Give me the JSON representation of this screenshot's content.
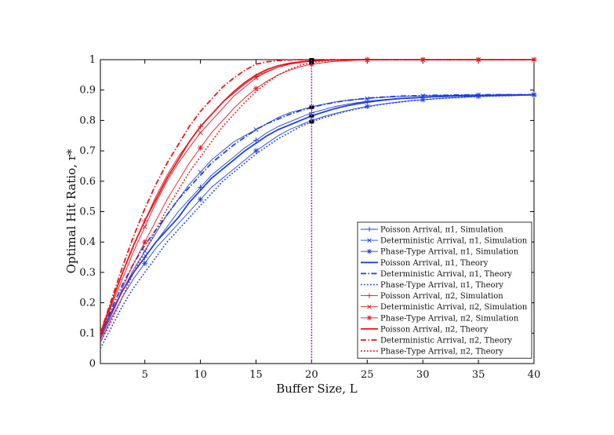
{
  "chart_data": {
    "type": "line",
    "xlabel": "Buffer Size, L",
    "ylabel": "Optimal Hit Ratio, r*",
    "xlim": [
      1,
      40
    ],
    "ylim": [
      0,
      1
    ],
    "xticks": [
      5,
      10,
      15,
      20,
      25,
      30,
      35,
      40
    ],
    "yticks": [
      0,
      0.1,
      0.2,
      0.3,
      0.4,
      0.5,
      0.6,
      0.7,
      0.8,
      0.9,
      1
    ],
    "ytick_labels": [
      "0",
      "0.1",
      "0.2",
      "0.3",
      "0.4",
      "0.5",
      "0.6",
      "0.7",
      "0.8",
      "0.9",
      "1"
    ],
    "grid": false,
    "legend_position": "bottom-right",
    "vline_x": 20,
    "colors": {
      "pi1": "#1f3fe0",
      "pi2": "#e8141c",
      "vline": "#9b1fd6"
    },
    "series": [
      {
        "name": "Poisson Arrival, π1, Simulation",
        "group": "pi1",
        "style": "sim",
        "marker": "plus",
        "x": [
          1,
          2,
          3,
          4,
          5,
          6,
          7,
          8,
          9,
          10,
          11,
          12,
          13,
          14,
          15,
          16,
          17,
          18,
          19,
          20,
          21,
          22,
          23,
          24,
          25,
          26,
          27,
          28,
          29,
          30,
          31,
          32,
          33,
          34,
          35,
          36,
          37,
          38,
          39,
          40
        ],
        "y": [
          0.09,
          0.17,
          0.24,
          0.3,
          0.35,
          0.4,
          0.45,
          0.5,
          0.54,
          0.58,
          0.62,
          0.65,
          0.68,
          0.71,
          0.735,
          0.76,
          0.78,
          0.795,
          0.81,
          0.825,
          0.835,
          0.845,
          0.852,
          0.858,
          0.863,
          0.867,
          0.87,
          0.873,
          0.875,
          0.877,
          0.878,
          0.879,
          0.88,
          0.881,
          0.882,
          0.882,
          0.883,
          0.883,
          0.884,
          0.884
        ]
      },
      {
        "name": "Deterministic Arrival, π1, Simulation",
        "group": "pi1",
        "style": "sim",
        "marker": "cross",
        "x": [
          1,
          2,
          3,
          4,
          5,
          6,
          7,
          8,
          9,
          10,
          11,
          12,
          13,
          14,
          15,
          16,
          17,
          18,
          19,
          20,
          21,
          22,
          23,
          24,
          25,
          26,
          27,
          28,
          29,
          30,
          31,
          32,
          33,
          34,
          35,
          36,
          37,
          38,
          39,
          40
        ],
        "y": [
          0.08,
          0.16,
          0.24,
          0.31,
          0.37,
          0.43,
          0.49,
          0.54,
          0.59,
          0.63,
          0.67,
          0.7,
          0.73,
          0.75,
          0.77,
          0.79,
          0.81,
          0.825,
          0.835,
          0.845,
          0.853,
          0.86,
          0.865,
          0.869,
          0.872,
          0.875,
          0.877,
          0.879,
          0.88,
          0.881,
          0.882,
          0.883,
          0.883,
          0.884,
          0.884,
          0.884,
          0.885,
          0.885,
          0.885,
          0.885
        ]
      },
      {
        "name": "Phase-Type Arrival, π1, Simulation",
        "group": "pi1",
        "style": "sim",
        "marker": "star",
        "x": [
          1,
          2,
          3,
          4,
          5,
          6,
          7,
          8,
          9,
          10,
          11,
          12,
          13,
          14,
          15,
          16,
          17,
          18,
          19,
          20,
          21,
          22,
          23,
          24,
          25,
          26,
          27,
          28,
          29,
          30,
          31,
          32,
          33,
          34,
          35,
          36,
          37,
          38,
          39,
          40
        ],
        "y": [
          0.07,
          0.15,
          0.22,
          0.28,
          0.33,
          0.38,
          0.42,
          0.46,
          0.5,
          0.54,
          0.58,
          0.61,
          0.64,
          0.67,
          0.7,
          0.725,
          0.75,
          0.77,
          0.785,
          0.8,
          0.812,
          0.822,
          0.831,
          0.839,
          0.846,
          0.852,
          0.857,
          0.861,
          0.865,
          0.868,
          0.871,
          0.873,
          0.875,
          0.877,
          0.879,
          0.88,
          0.881,
          0.882,
          0.883,
          0.884
        ]
      },
      {
        "name": "Poisson Arrival, π1, Theory",
        "group": "pi1",
        "style": "solid",
        "x": [
          1,
          2,
          3,
          4,
          5,
          6,
          7,
          8,
          9,
          10,
          11,
          12,
          13,
          14,
          15,
          16,
          17,
          18,
          19,
          20,
          21,
          22,
          23,
          24,
          25,
          26,
          27,
          28,
          29,
          30,
          31,
          32,
          33,
          34,
          35,
          36,
          37,
          38,
          39,
          40
        ],
        "y": [
          0.09,
          0.17,
          0.24,
          0.3,
          0.35,
          0.4,
          0.44,
          0.48,
          0.53,
          0.57,
          0.61,
          0.64,
          0.67,
          0.7,
          0.725,
          0.75,
          0.77,
          0.785,
          0.8,
          0.815,
          0.827,
          0.838,
          0.847,
          0.854,
          0.86,
          0.865,
          0.869,
          0.872,
          0.874,
          0.876,
          0.878,
          0.879,
          0.88,
          0.881,
          0.882,
          0.882,
          0.883,
          0.883,
          0.884,
          0.884
        ]
      },
      {
        "name": "Deterministic Arrival, π1, Theory",
        "group": "pi1",
        "style": "dashdot",
        "x": [
          1,
          2,
          3,
          4,
          5,
          6,
          7,
          8,
          9,
          10,
          11,
          12,
          13,
          14,
          15,
          16,
          17,
          18,
          19,
          20,
          21,
          22,
          23,
          24,
          25,
          26,
          27,
          28,
          29,
          30,
          31,
          32,
          33,
          34,
          35,
          36,
          37,
          38,
          39,
          40
        ],
        "y": [
          0.09,
          0.18,
          0.26,
          0.33,
          0.39,
          0.44,
          0.49,
          0.54,
          0.58,
          0.62,
          0.66,
          0.69,
          0.72,
          0.745,
          0.77,
          0.79,
          0.805,
          0.82,
          0.832,
          0.843,
          0.852,
          0.859,
          0.865,
          0.869,
          0.873,
          0.876,
          0.878,
          0.88,
          0.881,
          0.882,
          0.883,
          0.883,
          0.884,
          0.884,
          0.884,
          0.885,
          0.885,
          0.885,
          0.885,
          0.885
        ]
      },
      {
        "name": "Phase-Type Arrival, π1, Theory",
        "group": "pi1",
        "style": "dotted",
        "x": [
          1,
          2,
          3,
          4,
          5,
          6,
          7,
          8,
          9,
          10,
          11,
          12,
          13,
          14,
          15,
          16,
          17,
          18,
          19,
          20,
          21,
          22,
          23,
          24,
          25,
          26,
          27,
          28,
          29,
          30,
          31,
          32,
          33,
          34,
          35,
          36,
          37,
          38,
          39,
          40
        ],
        "y": [
          0.05,
          0.12,
          0.19,
          0.25,
          0.3,
          0.35,
          0.4,
          0.44,
          0.48,
          0.52,
          0.56,
          0.6,
          0.63,
          0.66,
          0.69,
          0.715,
          0.74,
          0.76,
          0.78,
          0.795,
          0.808,
          0.819,
          0.829,
          0.838,
          0.845,
          0.851,
          0.856,
          0.861,
          0.865,
          0.868,
          0.871,
          0.873,
          0.875,
          0.877,
          0.879,
          0.88,
          0.881,
          0.882,
          0.883,
          0.884
        ]
      },
      {
        "name": "Poisson Arrival, π2, Simulation",
        "group": "pi2",
        "style": "sim",
        "marker": "plus",
        "x": [
          1,
          2,
          3,
          4,
          5,
          6,
          7,
          8,
          9,
          10,
          11,
          12,
          13,
          14,
          15,
          16,
          17,
          18,
          19,
          20,
          21,
          22,
          23,
          24,
          25,
          26,
          27,
          28,
          29,
          30,
          31,
          32,
          33,
          34,
          35,
          36,
          37,
          38,
          39,
          40
        ],
        "y": [
          0.1,
          0.2,
          0.3,
          0.39,
          0.47,
          0.55,
          0.62,
          0.68,
          0.73,
          0.78,
          0.82,
          0.86,
          0.89,
          0.92,
          0.945,
          0.962,
          0.975,
          0.985,
          0.991,
          0.995,
          0.997,
          0.998,
          0.999,
          1.0,
          1.0,
          1.0,
          1.0,
          1.0,
          1.0,
          1.0,
          1.0,
          1.0,
          1.0,
          1.0,
          1.0,
          1.0,
          1.0,
          1.0,
          1.0,
          1.0
        ]
      },
      {
        "name": "Deterministic Arrival, π2, Simulation",
        "group": "pi2",
        "style": "sim",
        "marker": "cross",
        "x": [
          1,
          2,
          3,
          4,
          5,
          6,
          7,
          8,
          9,
          10,
          11,
          12,
          13,
          14,
          15,
          16,
          17,
          18,
          19,
          20,
          21,
          22,
          23,
          24,
          25,
          26,
          27,
          28,
          29,
          30,
          31,
          32,
          33,
          34,
          35,
          36,
          37,
          38,
          39,
          40
        ],
        "y": [
          0.09,
          0.19,
          0.28,
          0.37,
          0.45,
          0.53,
          0.6,
          0.66,
          0.71,
          0.76,
          0.8,
          0.84,
          0.88,
          0.91,
          0.94,
          0.96,
          0.975,
          0.985,
          0.991,
          0.995,
          0.997,
          0.998,
          0.999,
          1.0,
          1.0,
          1.0,
          1.0,
          1.0,
          1.0,
          1.0,
          1.0,
          1.0,
          1.0,
          1.0,
          1.0,
          1.0,
          1.0,
          1.0,
          1.0,
          1.0
        ]
      },
      {
        "name": "Phase-Type Arrival, π2, Simulation",
        "group": "pi2",
        "style": "sim",
        "marker": "star",
        "x": [
          1,
          2,
          3,
          4,
          5,
          6,
          7,
          8,
          9,
          10,
          11,
          12,
          13,
          14,
          15,
          16,
          17,
          18,
          19,
          20,
          21,
          22,
          23,
          24,
          25,
          26,
          27,
          28,
          29,
          30,
          31,
          32,
          33,
          34,
          35,
          36,
          37,
          38,
          39,
          40
        ],
        "y": [
          0.08,
          0.16,
          0.25,
          0.33,
          0.4,
          0.47,
          0.54,
          0.6,
          0.66,
          0.71,
          0.76,
          0.8,
          0.84,
          0.875,
          0.905,
          0.93,
          0.95,
          0.965,
          0.977,
          0.985,
          0.99,
          0.994,
          0.996,
          0.998,
          0.999,
          1.0,
          1.0,
          1.0,
          1.0,
          1.0,
          1.0,
          1.0,
          1.0,
          1.0,
          1.0,
          1.0,
          1.0,
          1.0,
          1.0,
          1.0
        ]
      },
      {
        "name": "Poisson Arrival, π2, Theory",
        "group": "pi2",
        "style": "solid",
        "x": [
          1,
          2,
          3,
          4,
          5,
          6,
          7,
          8,
          9,
          10,
          11,
          12,
          13,
          14,
          15,
          16,
          17,
          18,
          19,
          20,
          21,
          22,
          23,
          24,
          25,
          26,
          27,
          28,
          29,
          30,
          31,
          32,
          33,
          34,
          35,
          36,
          37,
          38,
          39,
          40
        ],
        "y": [
          0.1,
          0.2,
          0.3,
          0.39,
          0.47,
          0.54,
          0.61,
          0.67,
          0.73,
          0.78,
          0.82,
          0.86,
          0.895,
          0.925,
          0.95,
          0.968,
          0.98,
          0.988,
          0.993,
          0.996,
          0.998,
          0.999,
          1.0,
          1.0,
          1.0,
          1.0,
          1.0,
          1.0,
          1.0,
          1.0,
          1.0,
          1.0,
          1.0,
          1.0,
          1.0,
          1.0,
          1.0,
          1.0,
          1.0,
          1.0
        ]
      },
      {
        "name": "Deterministic Arrival, π2, Theory",
        "group": "pi2",
        "style": "dashdot",
        "x": [
          1,
          2,
          3,
          4,
          5,
          6,
          7,
          8,
          9,
          10,
          11,
          12,
          13,
          14,
          15,
          16,
          17,
          18,
          19,
          20,
          21,
          22,
          23,
          24,
          25,
          26,
          27,
          28,
          29,
          30,
          31,
          32,
          33,
          34,
          35,
          36,
          37,
          38,
          39,
          40
        ],
        "y": [
          0.1,
          0.21,
          0.32,
          0.42,
          0.51,
          0.59,
          0.66,
          0.72,
          0.78,
          0.83,
          0.87,
          0.91,
          0.94,
          0.965,
          0.985,
          0.993,
          0.997,
          0.999,
          1.0,
          1.0,
          1.0,
          1.0,
          1.0,
          1.0,
          1.0,
          1.0,
          1.0,
          1.0,
          1.0,
          1.0,
          1.0,
          1.0,
          1.0,
          1.0,
          1.0,
          1.0,
          1.0,
          1.0,
          1.0,
          1.0
        ]
      },
      {
        "name": "Phase-Type Arrival, π2, Theory",
        "group": "pi2",
        "style": "dotted",
        "x": [
          1,
          2,
          3,
          4,
          5,
          6,
          7,
          8,
          9,
          10,
          11,
          12,
          13,
          14,
          15,
          16,
          17,
          18,
          19,
          20,
          21,
          22,
          23,
          24,
          25,
          26,
          27,
          28,
          29,
          30,
          31,
          32,
          33,
          34,
          35,
          36,
          37,
          38,
          39,
          40
        ],
        "y": [
          0.07,
          0.14,
          0.22,
          0.3,
          0.37,
          0.44,
          0.51,
          0.57,
          0.63,
          0.68,
          0.73,
          0.78,
          0.82,
          0.86,
          0.895,
          0.925,
          0.95,
          0.968,
          0.982,
          0.99,
          0.995,
          0.998,
          0.999,
          1.0,
          1.0,
          1.0,
          1.0,
          1.0,
          1.0,
          1.0,
          1.0,
          1.0,
          1.0,
          1.0,
          1.0,
          1.0,
          1.0,
          1.0,
          1.0,
          1.0
        ]
      }
    ]
  }
}
